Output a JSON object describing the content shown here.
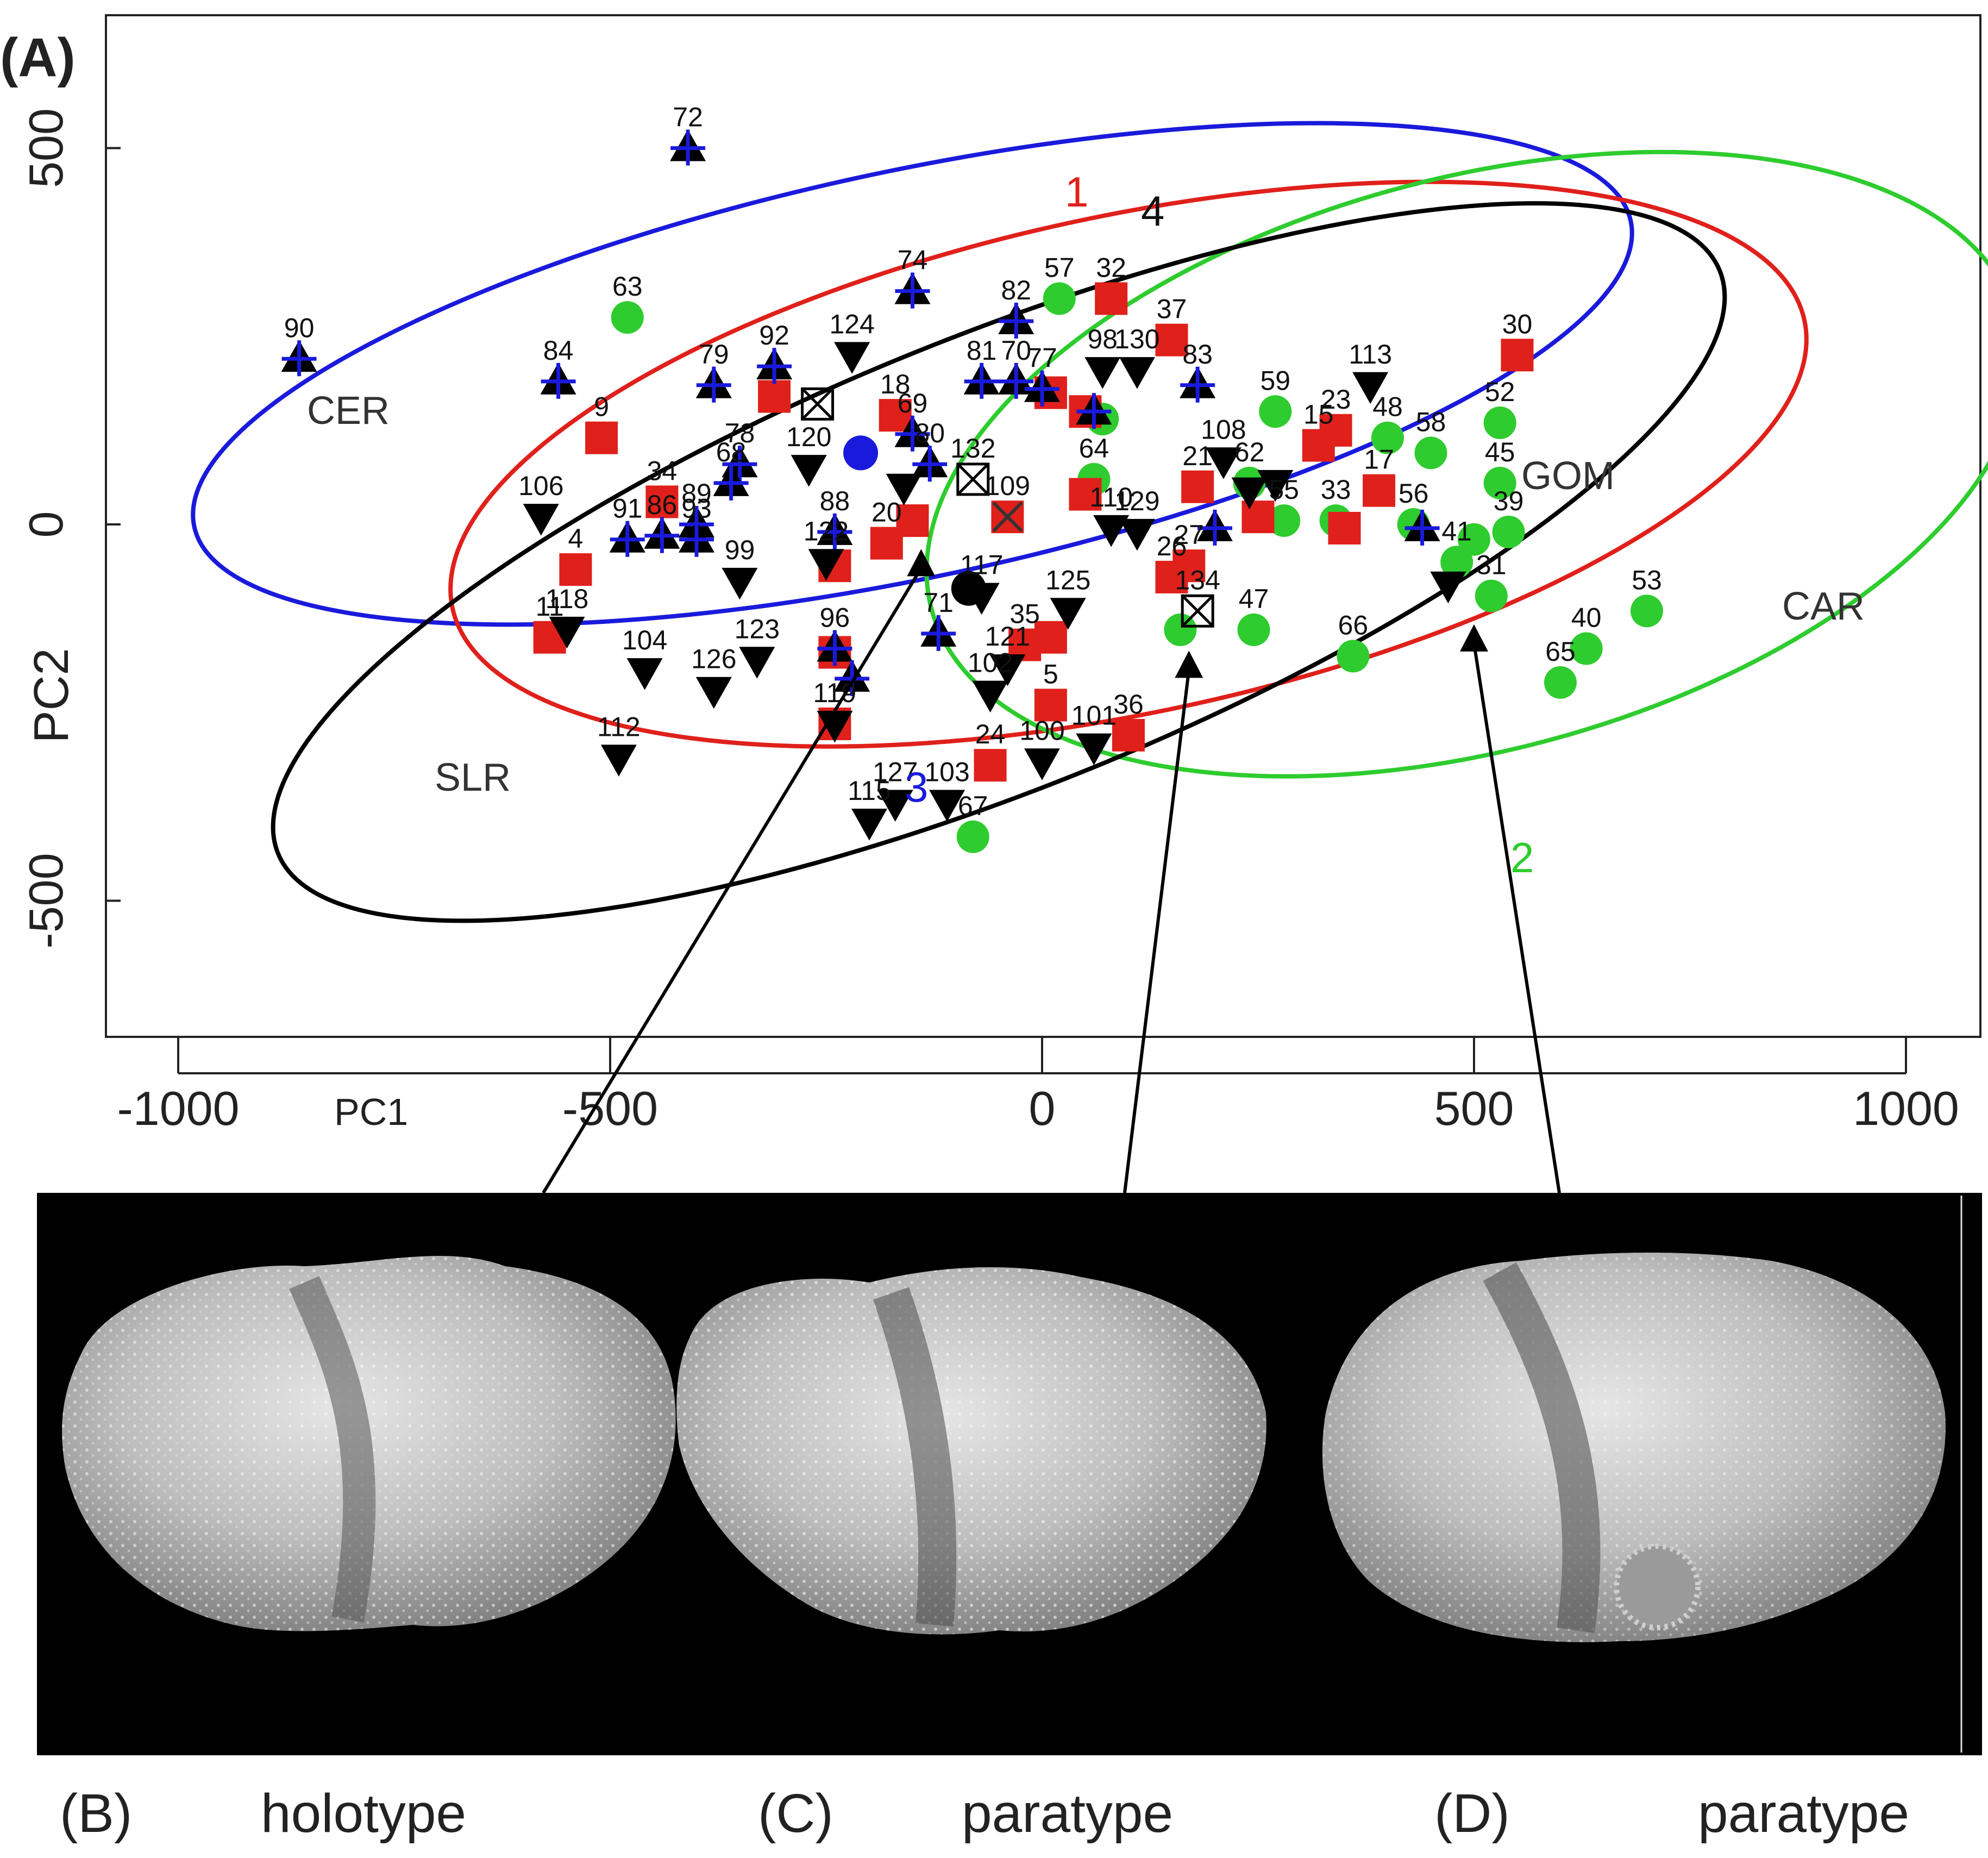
{
  "panel_label": "(A)",
  "chart_data": {
    "type": "scatter",
    "title": "",
    "xlabel": "PC1",
    "ylabel": "PC2",
    "xlim": [
      -1000,
      1000
    ],
    "ylim": [
      -600,
      650
    ],
    "x_ticks": [
      "-1000",
      "-500",
      "0",
      "500",
      "1000"
    ],
    "y_ticks": [
      "-500",
      "0",
      "500"
    ],
    "region_labels": [
      "CER",
      "SLR",
      "GOM",
      "CAR"
    ],
    "ellipse_labels": [
      "1",
      "2",
      "3",
      "4"
    ],
    "colors": {
      "red": "#e0201b",
      "green": "#2ecc2e",
      "blue": "#1a1adc",
      "black": "#000000"
    },
    "ellipses": [
      {
        "id": "3",
        "color": "#1a1adc",
        "cx": -150,
        "cy": 200,
        "rx": 850,
        "ry": 270,
        "rot": -12
      },
      {
        "id": "1",
        "color": "#e0201b",
        "cx": 100,
        "cy": 80,
        "rx": 800,
        "ry": 330,
        "rot": -12
      },
      {
        "id": "2",
        "color": "#2ecc2e",
        "cx": 500,
        "cy": 80,
        "rx": 650,
        "ry": 380,
        "rot": -15
      },
      {
        "id": "4",
        "color": "#000000",
        "cx": -50,
        "cy": -50,
        "rx": 900,
        "ry": 300,
        "rot": -22
      }
    ],
    "series": [
      {
        "group": "green",
        "shape": "circle",
        "points": [
          {
            "x": 20,
            "y": 300,
            "label": "57"
          },
          {
            "x": -480,
            "y": 275,
            "label": "63"
          },
          {
            "x": 270,
            "y": 150,
            "label": "59"
          },
          {
            "x": 530,
            "y": 135,
            "label": "52"
          },
          {
            "x": 400,
            "y": 115,
            "label": "48"
          },
          {
            "x": 450,
            "y": 95,
            "label": "58"
          },
          {
            "x": 530,
            "y": 55,
            "label": "45"
          },
          {
            "x": 240,
            "y": 55,
            "label": "62"
          },
          {
            "x": 280,
            "y": 5,
            "label": "55"
          },
          {
            "x": 340,
            "y": 5,
            "label": "33"
          },
          {
            "x": 430,
            "y": 0,
            "label": "56"
          },
          {
            "x": 540,
            "y": -10,
            "label": "39"
          },
          {
            "x": 480,
            "y": -50,
            "label": "41"
          },
          {
            "x": 520,
            "y": -95,
            "label": "31"
          },
          {
            "x": 700,
            "y": -115,
            "label": "53"
          },
          {
            "x": 630,
            "y": -165,
            "label": "40"
          },
          {
            "x": 600,
            "y": -210,
            "label": "65"
          },
          {
            "x": 360,
            "y": -175,
            "label": "66"
          },
          {
            "x": 245,
            "y": -140,
            "label": "47"
          },
          {
            "x": 160,
            "y": -140,
            "label": ""
          },
          {
            "x": -80,
            "y": -415,
            "label": "67"
          },
          {
            "x": 60,
            "y": 60,
            "label": "64"
          },
          {
            "x": 70,
            "y": 140,
            "label": ""
          },
          {
            "x": 500,
            "y": -20,
            "label": ""
          }
        ]
      },
      {
        "group": "red",
        "shape": "square",
        "points": [
          {
            "x": 80,
            "y": 300,
            "label": "32"
          },
          {
            "x": 150,
            "y": 245,
            "label": "37"
          },
          {
            "x": 550,
            "y": 225,
            "label": "30"
          },
          {
            "x": -510,
            "y": 115,
            "label": "9"
          },
          {
            "x": -310,
            "y": 170,
            "label": ""
          },
          {
            "x": -170,
            "y": 145,
            "label": "18"
          },
          {
            "x": 320,
            "y": 105,
            "label": "15"
          },
          {
            "x": 340,
            "y": 125,
            "label": "23"
          },
          {
            "x": 390,
            "y": 45,
            "label": "17"
          },
          {
            "x": -440,
            "y": 30,
            "label": "34"
          },
          {
            "x": -540,
            "y": -60,
            "label": "4"
          },
          {
            "x": -570,
            "y": -150,
            "label": "11"
          },
          {
            "x": -180,
            "y": -25,
            "label": "20"
          },
          {
            "x": 180,
            "y": 50,
            "label": "21"
          },
          {
            "x": 150,
            "y": -70,
            "label": "26"
          },
          {
            "x": 170,
            "y": -55,
            "label": "27"
          },
          {
            "x": -20,
            "y": -160,
            "label": "35"
          },
          {
            "x": 10,
            "y": -150,
            "label": ""
          },
          {
            "x": 10,
            "y": -240,
            "label": "5"
          },
          {
            "x": -60,
            "y": -320,
            "label": "24"
          },
          {
            "x": 100,
            "y": -280,
            "label": "36"
          },
          {
            "x": -240,
            "y": -265,
            "label": ""
          },
          {
            "x": -240,
            "y": -170,
            "label": ""
          },
          {
            "x": -240,
            "y": -55,
            "label": ""
          },
          {
            "x": -40,
            "y": 10,
            "label": ""
          },
          {
            "x": 50,
            "y": 40,
            "label": ""
          },
          {
            "x": 10,
            "y": 175,
            "label": ""
          },
          {
            "x": 50,
            "y": 150,
            "label": ""
          },
          {
            "x": 350,
            "y": -5,
            "label": ""
          },
          {
            "x": 250,
            "y": 10,
            "label": ""
          },
          {
            "x": -150,
            "y": 5,
            "label": ""
          }
        ]
      },
      {
        "group": "blue",
        "shape": "triangle-up",
        "points": [
          {
            "x": -410,
            "y": 500,
            "label": "72"
          },
          {
            "x": -860,
            "y": 220,
            "label": "90"
          },
          {
            "x": -560,
            "y": 190,
            "label": "84"
          },
          {
            "x": -150,
            "y": 310,
            "label": "74"
          },
          {
            "x": -30,
            "y": 270,
            "label": "82"
          },
          {
            "x": -380,
            "y": 185,
            "label": "79"
          },
          {
            "x": -310,
            "y": 210,
            "label": "92"
          },
          {
            "x": -70,
            "y": 190,
            "label": "81"
          },
          {
            "x": -30,
            "y": 190,
            "label": "70"
          },
          {
            "x": 0,
            "y": 180,
            "label": "77"
          },
          {
            "x": 180,
            "y": 185,
            "label": "83"
          },
          {
            "x": -350,
            "y": 80,
            "label": "78"
          },
          {
            "x": -360,
            "y": 55,
            "label": "68"
          },
          {
            "x": -480,
            "y": -20,
            "label": "91"
          },
          {
            "x": -440,
            "y": -15,
            "label": "86"
          },
          {
            "x": -400,
            "y": 0,
            "label": "89"
          },
          {
            "x": -400,
            "y": -20,
            "label": "93"
          },
          {
            "x": -240,
            "y": -10,
            "label": "88"
          },
          {
            "x": -240,
            "y": -165,
            "label": "96"
          },
          {
            "x": -220,
            "y": -205,
            "label": ""
          },
          {
            "x": -120,
            "y": -145,
            "label": "71"
          },
          {
            "x": -150,
            "y": 120,
            "label": "69"
          },
          {
            "x": -130,
            "y": 80,
            "label": "80"
          },
          {
            "x": 200,
            "y": -5,
            "label": ""
          },
          {
            "x": 440,
            "y": -5,
            "label": ""
          },
          {
            "x": 60,
            "y": 150,
            "label": ""
          }
        ]
      },
      {
        "group": "black",
        "shape": "triangle-down",
        "points": [
          {
            "x": -220,
            "y": 225,
            "label": "124"
          },
          {
            "x": 110,
            "y": 205,
            "label": "130"
          },
          {
            "x": 380,
            "y": 185,
            "label": "113"
          },
          {
            "x": -270,
            "y": 75,
            "label": "120"
          },
          {
            "x": -580,
            "y": 10,
            "label": "106"
          },
          {
            "x": -550,
            "y": -140,
            "label": "118"
          },
          {
            "x": -460,
            "y": -195,
            "label": "104"
          },
          {
            "x": -380,
            "y": -220,
            "label": "126"
          },
          {
            "x": -330,
            "y": -180,
            "label": "123"
          },
          {
            "x": -350,
            "y": -75,
            "label": "99"
          },
          {
            "x": -250,
            "y": -50,
            "label": "122"
          },
          {
            "x": -490,
            "y": -310,
            "label": "112"
          },
          {
            "x": -240,
            "y": -265,
            "label": "119"
          },
          {
            "x": -200,
            "y": -395,
            "label": "115"
          },
          {
            "x": -170,
            "y": -370,
            "label": "127"
          },
          {
            "x": -110,
            "y": -370,
            "label": "103"
          },
          {
            "x": -60,
            "y": -225,
            "label": "102"
          },
          {
            "x": -40,
            "y": -190,
            "label": "121"
          },
          {
            "x": -70,
            "y": -95,
            "label": "117"
          },
          {
            "x": 30,
            "y": -115,
            "label": "125"
          },
          {
            "x": 0,
            "y": -315,
            "label": "100"
          },
          {
            "x": 60,
            "y": -295,
            "label": "101"
          },
          {
            "x": 80,
            "y": -5,
            "label": "110"
          },
          {
            "x": 110,
            "y": -10,
            "label": "129"
          },
          {
            "x": 210,
            "y": 85,
            "label": "108"
          },
          {
            "x": 270,
            "y": 55,
            "label": ""
          },
          {
            "x": 240,
            "y": 45,
            "label": ""
          },
          {
            "x": 70,
            "y": 205,
            "label": "98"
          },
          {
            "x": 470,
            "y": -80,
            "label": ""
          },
          {
            "x": -160,
            "y": 50,
            "label": ""
          }
        ]
      },
      {
        "group": "special",
        "shape": "mixed",
        "points": [
          {
            "x": -210,
            "y": 95,
            "label": "",
            "marker": "blue-circle"
          },
          {
            "x": -85,
            "y": -85,
            "label": "",
            "marker": "black-circle"
          },
          {
            "x": -80,
            "y": 60,
            "label": "132",
            "marker": "crossed-box"
          },
          {
            "x": 180,
            "y": -115,
            "label": "134",
            "marker": "crossed-box"
          },
          {
            "x": -260,
            "y": 160,
            "label": "",
            "marker": "crossed-box"
          },
          {
            "x": -40,
            "y": 10,
            "label": "109",
            "marker": "x-cross"
          }
        ]
      }
    ],
    "arrow_targets": [
      {
        "x": -140,
        "y": -40
      },
      {
        "x": 170,
        "y": -175
      },
      {
        "x": 500,
        "y": -140
      }
    ]
  },
  "photos": [
    {
      "letter": "(B)",
      "label": "holotype"
    },
    {
      "letter": "(C)",
      "label": "paratype"
    },
    {
      "letter": "(D)",
      "label": "paratype"
    }
  ]
}
